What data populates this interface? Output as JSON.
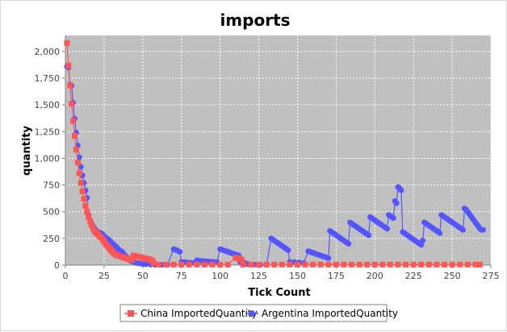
{
  "chart_data": {
    "type": "line",
    "title": "imports",
    "xlabel": "Tick Count",
    "ylabel": "quantity",
    "xlim": [
      0,
      275
    ],
    "ylim": [
      0,
      2150
    ],
    "xticks": [
      0,
      25,
      50,
      75,
      100,
      125,
      150,
      175,
      200,
      225,
      250,
      275
    ],
    "yticks": [
      0,
      250,
      500,
      750,
      1000,
      1250,
      1500,
      1750,
      2000
    ],
    "xtick_labels": [
      "0",
      "25",
      "50",
      "75",
      "100",
      "125",
      "150",
      "175",
      "200",
      "225",
      "250",
      "275"
    ],
    "ytick_labels": [
      "0",
      "250",
      "500",
      "750",
      "1,000",
      "1,250",
      "1,500",
      "1,750",
      "2,000"
    ],
    "grid": true,
    "legend_position": "bottom",
    "colors": {
      "plot_background": "#c0c0c0",
      "grid": "#ffffff"
    },
    "series": [
      {
        "name": "China ImportedQuantity",
        "color": "#ff5555",
        "marker": "square",
        "points": [
          [
            1,
            2080
          ],
          [
            2,
            1870
          ],
          [
            3,
            1680
          ],
          [
            4,
            1510
          ],
          [
            5,
            1350
          ],
          [
            6,
            1210
          ],
          [
            7,
            1080
          ],
          [
            8,
            960
          ],
          [
            9,
            860
          ],
          [
            10,
            770
          ],
          [
            11,
            690
          ],
          [
            12,
            620
          ],
          [
            13,
            555
          ],
          [
            14,
            500
          ],
          [
            15,
            450
          ],
          [
            16,
            405
          ],
          [
            17,
            370
          ],
          [
            18,
            340
          ],
          [
            19,
            315
          ],
          [
            20,
            300
          ],
          [
            21,
            290
          ],
          [
            22,
            270
          ],
          [
            23,
            260
          ],
          [
            24,
            240
          ],
          [
            25,
            220
          ],
          [
            26,
            200
          ],
          [
            27,
            180
          ],
          [
            28,
            165
          ],
          [
            29,
            150
          ],
          [
            30,
            130
          ],
          [
            31,
            115
          ],
          [
            32,
            100
          ],
          [
            33,
            95
          ],
          [
            34,
            90
          ],
          [
            35,
            85
          ],
          [
            36,
            80
          ],
          [
            37,
            75
          ],
          [
            38,
            70
          ],
          [
            39,
            65
          ],
          [
            40,
            60
          ],
          [
            41,
            55
          ],
          [
            42,
            50
          ],
          [
            43,
            48
          ],
          [
            44,
            90
          ],
          [
            45,
            85
          ],
          [
            46,
            80
          ],
          [
            47,
            78
          ],
          [
            48,
            75
          ],
          [
            49,
            70
          ],
          [
            50,
            68
          ],
          [
            51,
            65
          ],
          [
            52,
            60
          ],
          [
            53,
            58
          ],
          [
            54,
            55
          ],
          [
            55,
            50
          ],
          [
            56,
            45
          ],
          [
            57,
            20
          ],
          [
            60,
            5
          ],
          [
            65,
            5
          ],
          [
            70,
            5
          ],
          [
            75,
            5
          ],
          [
            80,
            5
          ],
          [
            85,
            5
          ],
          [
            90,
            5
          ],
          [
            95,
            5
          ],
          [
            100,
            5
          ],
          [
            105,
            5
          ],
          [
            110,
            70
          ],
          [
            111,
            65
          ],
          [
            112,
            60
          ],
          [
            113,
            55
          ],
          [
            114,
            50
          ],
          [
            115,
            5
          ],
          [
            120,
            5
          ],
          [
            125,
            5
          ],
          [
            130,
            5
          ],
          [
            135,
            5
          ],
          [
            140,
            5
          ],
          [
            145,
            5
          ],
          [
            150,
            5
          ],
          [
            155,
            5
          ],
          [
            160,
            5
          ],
          [
            165,
            5
          ],
          [
            170,
            5
          ],
          [
            175,
            5
          ],
          [
            180,
            5
          ],
          [
            185,
            5
          ],
          [
            190,
            5
          ],
          [
            195,
            5
          ],
          [
            200,
            5
          ],
          [
            205,
            5
          ],
          [
            210,
            5
          ],
          [
            215,
            5
          ],
          [
            220,
            5
          ],
          [
            225,
            5
          ],
          [
            230,
            5
          ],
          [
            235,
            5
          ],
          [
            240,
            5
          ],
          [
            245,
            5
          ],
          [
            250,
            5
          ],
          [
            255,
            5
          ],
          [
            260,
            5
          ],
          [
            265,
            5
          ],
          [
            268,
            5
          ]
        ]
      },
      {
        "name": "Argentina ImportedQuantity",
        "color": "#5555ff",
        "marker": "circle",
        "points": [
          [
            1,
            1860
          ],
          [
            2,
            1850
          ],
          [
            3,
            1690
          ],
          [
            4,
            1680
          ],
          [
            5,
            1520
          ],
          [
            6,
            1370
          ],
          [
            7,
            1240
          ],
          [
            8,
            1120
          ],
          [
            9,
            1010
          ],
          [
            10,
            920
          ],
          [
            11,
            840
          ],
          [
            12,
            770
          ],
          [
            13,
            700
          ],
          [
            14,
            630
          ],
          [
            15,
            470
          ],
          [
            16,
            420
          ],
          [
            17,
            390
          ],
          [
            18,
            360
          ],
          [
            19,
            340
          ],
          [
            20,
            320
          ],
          [
            21,
            310
          ],
          [
            22,
            305
          ],
          [
            23,
            300
          ],
          [
            24,
            290
          ],
          [
            25,
            270
          ],
          [
            26,
            260
          ],
          [
            27,
            250
          ],
          [
            28,
            240
          ],
          [
            29,
            225
          ],
          [
            30,
            210
          ],
          [
            31,
            195
          ],
          [
            32,
            180
          ],
          [
            33,
            170
          ],
          [
            34,
            150
          ],
          [
            35,
            140
          ],
          [
            36,
            130
          ],
          [
            37,
            120
          ],
          [
            38,
            100
          ],
          [
            39,
            85
          ],
          [
            40,
            70
          ],
          [
            42,
            40
          ],
          [
            44,
            30
          ],
          [
            46,
            20
          ],
          [
            48,
            15
          ],
          [
            50,
            10
          ],
          [
            52,
            8
          ],
          [
            55,
            5
          ],
          [
            58,
            3
          ],
          [
            62,
            3
          ],
          [
            66,
            3
          ],
          [
            70,
            150
          ],
          [
            71,
            145
          ],
          [
            72,
            140
          ],
          [
            73,
            130
          ],
          [
            74,
            125
          ],
          [
            75,
            30
          ],
          [
            77,
            28
          ],
          [
            79,
            25
          ],
          [
            81,
            22
          ],
          [
            83,
            20
          ],
          [
            85,
            45
          ],
          [
            86,
            42
          ],
          [
            88,
            40
          ],
          [
            90,
            38
          ],
          [
            92,
            35
          ],
          [
            94,
            32
          ],
          [
            96,
            30
          ],
          [
            98,
            28
          ],
          [
            100,
            150
          ],
          [
            101,
            145
          ],
          [
            102,
            140
          ],
          [
            103,
            135
          ],
          [
            104,
            130
          ],
          [
            105,
            125
          ],
          [
            106,
            120
          ],
          [
            107,
            115
          ],
          [
            108,
            110
          ],
          [
            109,
            105
          ],
          [
            110,
            100
          ],
          [
            111,
            95
          ],
          [
            112,
            90
          ],
          [
            113,
            30
          ],
          [
            114,
            25
          ],
          [
            116,
            20
          ],
          [
            118,
            10
          ],
          [
            122,
            5
          ],
          [
            126,
            3
          ],
          [
            130,
            3
          ],
          [
            133,
            250
          ],
          [
            134,
            240
          ],
          [
            135,
            230
          ],
          [
            136,
            220
          ],
          [
            137,
            210
          ],
          [
            138,
            200
          ],
          [
            139,
            190
          ],
          [
            140,
            180
          ],
          [
            141,
            170
          ],
          [
            142,
            160
          ],
          [
            143,
            150
          ],
          [
            144,
            140
          ],
          [
            145,
            30
          ],
          [
            148,
            28
          ],
          [
            151,
            25
          ],
          [
            154,
            20
          ],
          [
            157,
            130
          ],
          [
            158,
            125
          ],
          [
            159,
            120
          ],
          [
            160,
            115
          ],
          [
            161,
            110
          ],
          [
            162,
            105
          ],
          [
            163,
            100
          ],
          [
            164,
            95
          ],
          [
            165,
            90
          ],
          [
            166,
            85
          ],
          [
            167,
            80
          ],
          [
            168,
            75
          ],
          [
            169,
            70
          ],
          [
            170,
            65
          ],
          [
            171,
            320
          ],
          [
            172,
            310
          ],
          [
            173,
            300
          ],
          [
            174,
            290
          ],
          [
            175,
            280
          ],
          [
            176,
            270
          ],
          [
            177,
            260
          ],
          [
            178,
            250
          ],
          [
            179,
            240
          ],
          [
            180,
            230
          ],
          [
            181,
            220
          ],
          [
            182,
            210
          ],
          [
            183,
            200
          ],
          [
            184,
            400
          ],
          [
            185,
            390
          ],
          [
            186,
            380
          ],
          [
            187,
            370
          ],
          [
            188,
            360
          ],
          [
            189,
            350
          ],
          [
            190,
            340
          ],
          [
            191,
            330
          ],
          [
            192,
            320
          ],
          [
            193,
            310
          ],
          [
            194,
            300
          ],
          [
            195,
            290
          ],
          [
            196,
            280
          ],
          [
            197,
            450
          ],
          [
            198,
            440
          ],
          [
            199,
            430
          ],
          [
            200,
            420
          ],
          [
            201,
            410
          ],
          [
            202,
            400
          ],
          [
            203,
            390
          ],
          [
            204,
            380
          ],
          [
            205,
            370
          ],
          [
            206,
            360
          ],
          [
            207,
            350
          ],
          [
            208,
            340
          ],
          [
            209,
            470
          ],
          [
            210,
            460
          ],
          [
            211,
            450
          ],
          [
            212,
            440
          ],
          [
            213,
            600
          ],
          [
            214,
            580
          ],
          [
            215,
            730
          ],
          [
            216,
            720
          ],
          [
            217,
            700
          ],
          [
            218,
            310
          ],
          [
            219,
            300
          ],
          [
            220,
            290
          ],
          [
            221,
            280
          ],
          [
            222,
            270
          ],
          [
            223,
            260
          ],
          [
            224,
            250
          ],
          [
            225,
            240
          ],
          [
            226,
            230
          ],
          [
            227,
            220
          ],
          [
            228,
            210
          ],
          [
            229,
            200
          ],
          [
            230,
            190
          ],
          [
            231,
            230
          ],
          [
            232,
            400
          ],
          [
            233,
            390
          ],
          [
            234,
            380
          ],
          [
            235,
            370
          ],
          [
            236,
            360
          ],
          [
            237,
            350
          ],
          [
            238,
            340
          ],
          [
            239,
            330
          ],
          [
            240,
            320
          ],
          [
            241,
            310
          ],
          [
            242,
            300
          ],
          [
            243,
            470
          ],
          [
            244,
            460
          ],
          [
            245,
            450
          ],
          [
            246,
            440
          ],
          [
            247,
            430
          ],
          [
            248,
            420
          ],
          [
            249,
            410
          ],
          [
            250,
            400
          ],
          [
            251,
            390
          ],
          [
            252,
            380
          ],
          [
            253,
            370
          ],
          [
            254,
            360
          ],
          [
            255,
            350
          ],
          [
            256,
            340
          ],
          [
            257,
            330
          ],
          [
            258,
            530
          ],
          [
            259,
            520
          ],
          [
            260,
            500
          ],
          [
            261,
            480
          ],
          [
            262,
            460
          ],
          [
            263,
            440
          ],
          [
            264,
            420
          ],
          [
            265,
            400
          ],
          [
            266,
            380
          ],
          [
            267,
            360
          ],
          [
            268,
            340
          ],
          [
            269,
            330
          ],
          [
            270,
            330
          ]
        ]
      }
    ]
  }
}
